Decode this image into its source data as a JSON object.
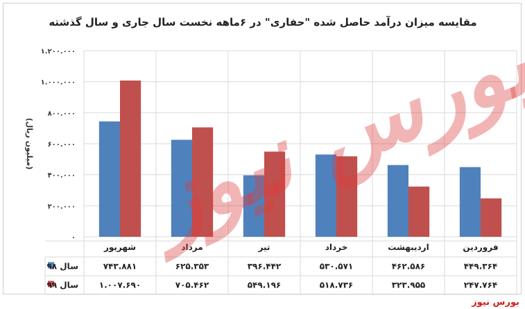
{
  "colors": {
    "series_98": "#4F81BD",
    "series_99": "#C0504D",
    "grid": "#d9d9d9",
    "brand": "#d01f1f"
  },
  "watermark_text": "بورس نیوز",
  "brand_label": "بورس نیوز",
  "chart_data": {
    "type": "bar",
    "title": "مقایسه میزان درآمد حاصل شده \"حفاری\" در ۶ماهه نخست سال جاری و سال گذشته",
    "ylabel": "(میلیون ریال)",
    "xlabel": "",
    "ylim": [
      0,
      1200000
    ],
    "y_ticks": [
      0,
      200000,
      400000,
      600000,
      800000,
      1000000,
      1200000
    ],
    "y_tick_labels": [
      "۰",
      "۲۰۰.۰۰۰",
      "۴۰۰.۰۰۰",
      "۶۰۰.۰۰۰",
      "۸۰۰.۰۰۰",
      "۱.۰۰۰.۰۰۰",
      "۱.۲۰۰.۰۰۰"
    ],
    "grid": true,
    "legend": "data-table",
    "categories": [
      "فروردین",
      "اردیبهشت",
      "خرداد",
      "تیر",
      "مرداد",
      "شهریور"
    ],
    "series": [
      {
        "name": "سال ۹۸",
        "values": [
          449364,
          462586,
          530571,
          396442,
          625353,
          743881
        ],
        "labels": [
          "۴۴۹.۳۶۴",
          "۴۶۲.۵۸۶",
          "۵۳۰.۵۷۱",
          "۳۹۶.۴۴۲",
          "۶۲۵.۳۵۳",
          "۷۴۳.۸۸۱"
        ]
      },
      {
        "name": "سال ۹۹",
        "values": [
          247764,
          323955,
          518736,
          549196,
          705462,
          1007690
        ],
        "labels": [
          "۲۴۷.۷۶۴",
          "۳۲۳.۹۵۵",
          "۵۱۸.۷۳۶",
          "۵۴۹.۱۹۶",
          "۷۰۵.۴۶۲",
          "۱.۰۰۷.۶۹۰"
        ]
      }
    ]
  }
}
